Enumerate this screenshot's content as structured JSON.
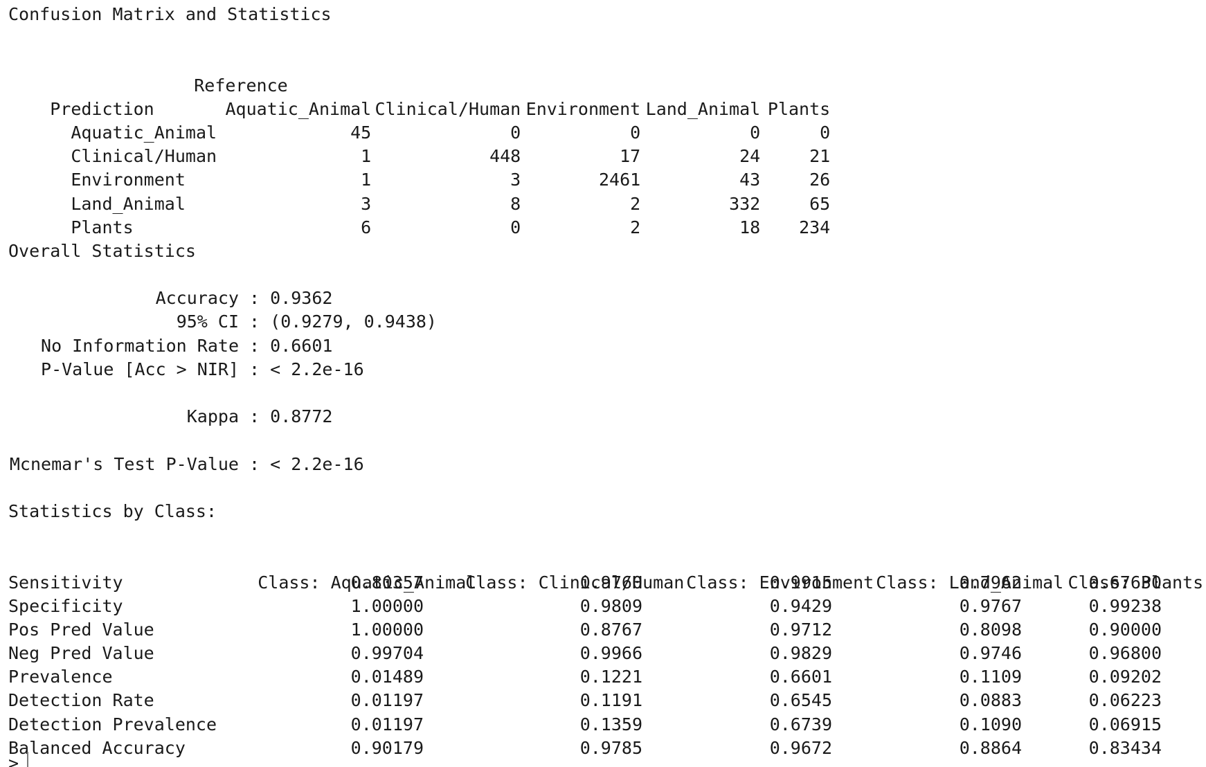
{
  "title": "Confusion Matrix and Statistics",
  "confusion_matrix": {
    "reference_label": "Reference",
    "prediction_label": "Prediction",
    "columns": [
      "Aquatic_Animal",
      "Clinical/Human",
      "Environment",
      "Land_Animal",
      "Plants"
    ],
    "rows": [
      {
        "label": "Aquatic_Animal",
        "values": [
          "45",
          "0",
          "0",
          "0",
          "0"
        ]
      },
      {
        "label": "Clinical/Human",
        "values": [
          "1",
          "448",
          "17",
          "24",
          "21"
        ]
      },
      {
        "label": "Environment",
        "values": [
          "1",
          "3",
          "2461",
          "43",
          "26"
        ]
      },
      {
        "label": "Land_Animal",
        "values": [
          "3",
          "8",
          "2",
          "332",
          "65"
        ]
      },
      {
        "label": "Plants",
        "values": [
          "6",
          "0",
          "2",
          "18",
          "234"
        ]
      }
    ]
  },
  "overall": {
    "heading": "Overall Statistics",
    "accuracy": {
      "label": "Accuracy",
      "value": "0.9362"
    },
    "ci": {
      "label": "95% CI",
      "value": "(0.9279, 0.9438)"
    },
    "nir": {
      "label": "No Information Rate",
      "value": "0.6601"
    },
    "pvalue": {
      "label": "P-Value [Acc > NIR]",
      "value": "< 2.2e-16"
    },
    "kappa": {
      "label": "Kappa",
      "value": "0.8772"
    },
    "mcnemar": {
      "label": "Mcnemar's Test P-Value",
      "value": "< 2.2e-16"
    }
  },
  "by_class": {
    "heading": "Statistics by Class:",
    "columns": [
      "Class: Aquatic_Animal",
      "Class: Clinical/Human",
      "Class: Environment",
      "Class: Land_Animal",
      "Class: Plants"
    ],
    "rows": [
      {
        "label": "Sensitivity",
        "values": [
          "0.80357",
          "0.9760",
          "0.9915",
          "0.7962",
          "0.67630"
        ]
      },
      {
        "label": "Specificity",
        "values": [
          "1.00000",
          "0.9809",
          "0.9429",
          "0.9767",
          "0.99238"
        ]
      },
      {
        "label": "Pos Pred Value",
        "values": [
          "1.00000",
          "0.8767",
          "0.9712",
          "0.8098",
          "0.90000"
        ]
      },
      {
        "label": "Neg Pred Value",
        "values": [
          "0.99704",
          "0.9966",
          "0.9829",
          "0.9746",
          "0.96800"
        ]
      },
      {
        "label": "Prevalence",
        "values": [
          "0.01489",
          "0.1221",
          "0.6601",
          "0.1109",
          "0.09202"
        ]
      },
      {
        "label": "Detection Rate",
        "values": [
          "0.01197",
          "0.1191",
          "0.6545",
          "0.0883",
          "0.06223"
        ]
      },
      {
        "label": "Detection Prevalence",
        "values": [
          "0.01197",
          "0.1359",
          "0.6739",
          "0.1090",
          "0.06915"
        ]
      },
      {
        "label": "Balanced Accuracy",
        "values": [
          "0.90179",
          "0.9785",
          "0.9672",
          "0.8864",
          "0.83434"
        ]
      }
    ]
  },
  "console": {
    "prompt": ">"
  }
}
